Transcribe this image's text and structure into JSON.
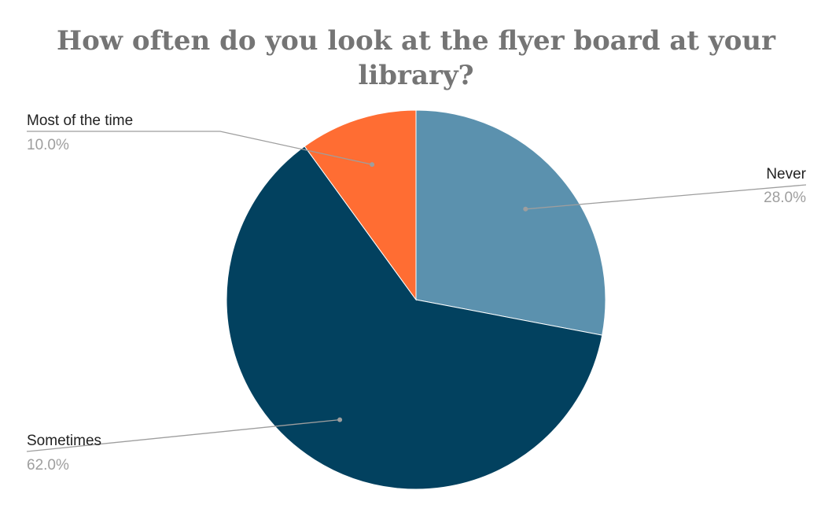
{
  "chart_data": {
    "type": "pie",
    "title_lines": [
      "How often do you look at the flyer board at your",
      "library?"
    ],
    "slices": [
      {
        "label": "Never",
        "value": 28.0,
        "percent_label": "28.0%",
        "color": "#5b91ae"
      },
      {
        "label": "Sometimes",
        "value": 62.0,
        "percent_label": "62.0%",
        "color": "#02415f"
      },
      {
        "label": "Most of the time",
        "value": 10.0,
        "percent_label": "10.0%",
        "color": "#ff6d33"
      }
    ],
    "start_angle": "12 o'clock",
    "direction": "clockwise",
    "legend": "none"
  }
}
